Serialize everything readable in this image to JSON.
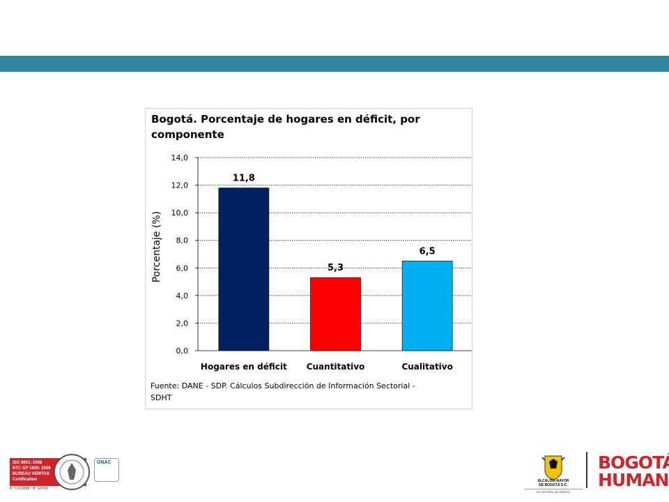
{
  "chart_data": {
    "type": "bar",
    "title": "Bogotá. Porcentaje de hogares en déficit, por componente",
    "ylabel": "Porcentaje (%)",
    "xlabel": "",
    "categories": [
      "Hogares en déficit",
      "Cuantitativo",
      "Cualitativo"
    ],
    "values": [
      11.8,
      5.3,
      6.5
    ],
    "value_labels": [
      "11,8",
      "5,3",
      "6,5"
    ],
    "bar_colors": [
      "#002060",
      "#ff0000",
      "#00b0f0"
    ],
    "ylim": [
      0,
      14
    ],
    "yticks": [
      "0,0",
      "2,0",
      "4,0",
      "6,0",
      "8,0",
      "10,0",
      "12,0",
      "14,0"
    ],
    "grid": true,
    "legend": "none",
    "source_note": "Fuente: DANE - SDP. Cálculos Subdirección de Información Sectorial - SDHT"
  },
  "colors": {
    "top_band": "#31859c",
    "logo_red": "#d2232a"
  },
  "footer": {
    "iso_lines": [
      "ISO 9001: 2008",
      "NTC GP 1000: 2009",
      "BUREAU VERITAS",
      "Certification"
    ],
    "iso_ref": "N° CO23888 / N° GP035",
    "onac": "ONAC",
    "alcaldia_line1": "ALCALDÍA MAYOR",
    "alcaldia_line2": "DE BOGOTÁ D.C.",
    "alcaldia_line3": "SECRETARÍA DE HÁBITAT",
    "bogota_humana_line1": "BOGOTÁ",
    "bogota_humana_line2": "HUMANA"
  }
}
